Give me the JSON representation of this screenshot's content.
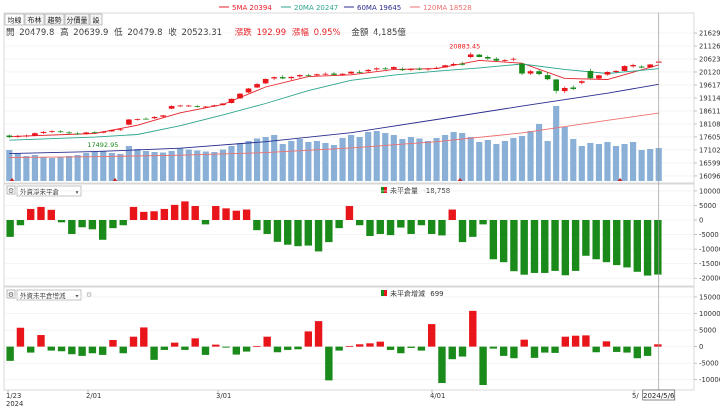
{
  "toolbar": {
    "tabs": [
      "均線",
      "布林",
      "趨勢",
      "分價量",
      "設"
    ],
    "active_tab": 0
  },
  "legend_ma": [
    {
      "label": "5MA 20394",
      "color": "#e8202a"
    },
    {
      "label": "20MA 20247",
      "color": "#2aa58c"
    },
    {
      "label": "60MA 19645",
      "color": "#2b2d8f"
    },
    {
      "label": "120MA 18528",
      "color": "#ee7070"
    }
  ],
  "info_line": {
    "open_label": "開",
    "open": "20479.8",
    "high_label": "高",
    "high": "20639.9",
    "low_label": "低",
    "low": "20479.8",
    "close_label": "收",
    "close": "20523.31",
    "change_label": "漲跌",
    "change": "192.99",
    "pct_label": "漲幅",
    "pct": "0.95%",
    "amount_label": "金額",
    "amount": "4,185億"
  },
  "panel2": {
    "select_label": "外資淨未平倉",
    "indicator_label": "未平倉量",
    "indicator_value": "-18,758"
  },
  "panel3": {
    "select_label": "外資未平倉增減",
    "indicator_label": "未平倉增減",
    "indicator_value": "699"
  },
  "colors": {
    "up": "#e8151b",
    "down": "#1a8a1a",
    "volume": "#8ab0d8",
    "text": "#333333"
  },
  "chart_data": [
    {
      "type": "candlestick",
      "x_ticks": [
        "1/23\n2024",
        "2/01",
        "3/01",
        "4/01",
        "5/"
      ],
      "cursor_date": "2024/5/6",
      "y_ticks": [
        16096,
        16599,
        17102,
        17605,
        18108,
        18611,
        19114,
        19617,
        20120,
        20623,
        21126,
        21629
      ],
      "ylim": [
        15900,
        21900
      ],
      "annotations": [
        {
          "text": "20883.45",
          "kind": "high"
        },
        {
          "text": "17492.95",
          "kind": "low"
        }
      ],
      "candles": [
        [
          17660,
          17700,
          17560,
          17600
        ],
        [
          17620,
          17680,
          17570,
          17640
        ],
        [
          17650,
          17700,
          17590,
          17660
        ],
        [
          17660,
          17780,
          17630,
          17750
        ],
        [
          17760,
          17830,
          17720,
          17800
        ],
        [
          17800,
          17860,
          17760,
          17830
        ],
        [
          17820,
          17870,
          17770,
          17790
        ],
        [
          17780,
          17830,
          17700,
          17750
        ],
        [
          17740,
          17790,
          17690,
          17720
        ],
        [
          17730,
          17800,
          17690,
          17780
        ],
        [
          17790,
          17820,
          17740,
          17760
        ],
        [
          17770,
          17830,
          17750,
          17810
        ],
        [
          17820,
          17890,
          17800,
          17870
        ],
        [
          17880,
          17930,
          17840,
          17900
        ],
        [
          18080,
          18300,
          18060,
          18280
        ],
        [
          18290,
          18320,
          18240,
          18300
        ],
        [
          18310,
          18360,
          18280,
          18300
        ],
        [
          18330,
          18400,
          18300,
          18380
        ],
        [
          18390,
          18460,
          18360,
          18440
        ],
        [
          18700,
          18830,
          18680,
          18800
        ],
        [
          18810,
          18850,
          18770,
          18820
        ],
        [
          18800,
          18850,
          18770,
          18820
        ],
        [
          18800,
          18830,
          18740,
          18770
        ],
        [
          18760,
          18800,
          18720,
          18780
        ],
        [
          18790,
          18850,
          18770,
          18830
        ],
        [
          18840,
          18920,
          18820,
          18900
        ],
        [
          18920,
          19100,
          18900,
          19080
        ],
        [
          19100,
          19300,
          19080,
          19280
        ],
        [
          19330,
          19500,
          19300,
          19480
        ],
        [
          19520,
          19700,
          19500,
          19650
        ],
        [
          19680,
          19870,
          19650,
          19850
        ],
        [
          19870,
          19950,
          19800,
          19920
        ],
        [
          19920,
          20000,
          19840,
          19870
        ],
        [
          19880,
          19950,
          19800,
          19930
        ],
        [
          19950,
          20030,
          19900,
          20000
        ],
        [
          19990,
          20050,
          19940,
          19980
        ],
        [
          19990,
          20060,
          19940,
          20030
        ],
        [
          20040,
          20100,
          20000,
          20050
        ],
        [
          20060,
          20120,
          20000,
          20010
        ],
        [
          20010,
          20070,
          19970,
          20050
        ],
        [
          20060,
          20150,
          20040,
          20130
        ],
        [
          20120,
          20190,
          20070,
          20100
        ],
        [
          20150,
          20240,
          20100,
          20200
        ],
        [
          20220,
          20300,
          20170,
          20260
        ],
        [
          20260,
          20310,
          20200,
          20230
        ],
        [
          20240,
          20340,
          20210,
          20310
        ],
        [
          20230,
          20300,
          20160,
          20190
        ],
        [
          20200,
          20260,
          20150,
          20240
        ],
        [
          20250,
          20300,
          20180,
          20210
        ],
        [
          20220,
          20280,
          20170,
          20250
        ],
        [
          20260,
          20330,
          20230,
          20280
        ],
        [
          20300,
          20400,
          20280,
          20380
        ],
        [
          20390,
          20480,
          20340,
          20430
        ],
        [
          20440,
          20520,
          20360,
          20400
        ],
        [
          20700,
          20880,
          20650,
          20800
        ],
        [
          20790,
          20820,
          20690,
          20700
        ],
        [
          20700,
          20760,
          20590,
          20640
        ],
        [
          20630,
          20690,
          20520,
          20560
        ],
        [
          20550,
          20620,
          20490,
          20580
        ],
        [
          20600,
          20680,
          20540,
          20630
        ],
        [
          20440,
          20470,
          20000,
          20060
        ],
        [
          20060,
          20200,
          20010,
          20150
        ],
        [
          20150,
          20210,
          19990,
          20040
        ],
        [
          20000,
          20110,
          19800,
          19840
        ],
        [
          19830,
          19850,
          19290,
          19390
        ],
        [
          19380,
          19560,
          19300,
          19500
        ],
        [
          19520,
          19600,
          19420,
          19460
        ],
        [
          19700,
          19800,
          19640,
          19760
        ],
        [
          20160,
          20250,
          19840,
          19880
        ],
        [
          19870,
          20010,
          19810,
          19990
        ],
        [
          20020,
          20150,
          19980,
          20120
        ],
        [
          20120,
          20190,
          20070,
          20160
        ],
        [
          20160,
          20380,
          20150,
          20350
        ],
        [
          20340,
          20440,
          20290,
          20390
        ],
        [
          20330,
          20380,
          20260,
          20290
        ],
        [
          20300,
          20430,
          20280,
          20410
        ],
        [
          20480,
          20640,
          20480,
          20523
        ]
      ],
      "ma5": [
        [
          0,
          17620
        ],
        [
          10,
          17740
        ],
        [
          15,
          18060
        ],
        [
          20,
          18540
        ],
        [
          25,
          18860
        ],
        [
          30,
          19540
        ],
        [
          35,
          19940
        ],
        [
          40,
          20010
        ],
        [
          45,
          20220
        ],
        [
          50,
          20250
        ],
        [
          55,
          20570
        ],
        [
          60,
          20460
        ],
        [
          65,
          19870
        ],
        [
          70,
          19830
        ],
        [
          76,
          20394
        ]
      ],
      "ma20": [
        [
          0,
          17480
        ],
        [
          10,
          17600
        ],
        [
          15,
          17700
        ],
        [
          20,
          18040
        ],
        [
          25,
          18460
        ],
        [
          30,
          18900
        ],
        [
          35,
          19400
        ],
        [
          40,
          19800
        ],
        [
          45,
          20000
        ],
        [
          50,
          20150
        ],
        [
          55,
          20280
        ],
        [
          60,
          20430
        ],
        [
          65,
          20220
        ],
        [
          70,
          20060
        ],
        [
          76,
          20247
        ]
      ],
      "ma60": [
        [
          0,
          16960
        ],
        [
          10,
          17040
        ],
        [
          20,
          17170
        ],
        [
          30,
          17420
        ],
        [
          40,
          17770
        ],
        [
          50,
          18280
        ],
        [
          60,
          18800
        ],
        [
          70,
          19300
        ],
        [
          76,
          19645
        ]
      ],
      "ma120": [
        [
          0,
          16810
        ],
        [
          10,
          16840
        ],
        [
          20,
          16900
        ],
        [
          30,
          17000
        ],
        [
          40,
          17180
        ],
        [
          50,
          17420
        ],
        [
          60,
          17760
        ],
        [
          70,
          18250
        ],
        [
          76,
          18528
        ]
      ],
      "volume": [
        62,
        55,
        50,
        52,
        48,
        46,
        48,
        50,
        52,
        56,
        58,
        60,
        56,
        54,
        70,
        64,
        60,
        58,
        57,
        60,
        65,
        63,
        61,
        59,
        58,
        63,
        70,
        76,
        80,
        85,
        88,
        92,
        74,
        80,
        84,
        78,
        80,
        76,
        72,
        86,
        92,
        88,
        98,
        100,
        96,
        92,
        84,
        88,
        85,
        80,
        86,
        92,
        98,
        96,
        88,
        78,
        82,
        74,
        80,
        86,
        90,
        100,
        114,
        80,
        150,
        108,
        84,
        70,
        76,
        74,
        78,
        70,
        74,
        78,
        62,
        64,
        66
      ]
    },
    {
      "type": "bar",
      "name": "外資淨未平倉",
      "y_ticks": [
        10000,
        5000,
        0,
        -5000,
        -10000,
        -15000,
        -20000
      ],
      "ylim": [
        -22000,
        11000
      ],
      "values": [
        -5800,
        -1800,
        3800,
        4500,
        3500,
        -800,
        -4800,
        -2500,
        -3200,
        -6800,
        -2800,
        -1800,
        4500,
        2800,
        3000,
        3800,
        5200,
        6400,
        4800,
        -1500,
        4800,
        4000,
        3200,
        3600,
        -3500,
        -4800,
        -7500,
        -8500,
        -9000,
        -8800,
        -10800,
        -7600,
        -2800,
        4800,
        -1800,
        -5500,
        -4800,
        -5200,
        -2600,
        -4800,
        -1800,
        -4800,
        -5300,
        3600,
        -7600,
        -5800,
        -1500,
        -13500,
        -14500,
        -17600,
        -18800,
        -18200,
        -18200,
        -17500,
        -19000,
        -17500,
        -12300,
        -13500,
        -14500,
        -15500,
        -16300,
        -17800,
        -19100,
        -18758
      ]
    },
    {
      "type": "bar",
      "name": "外資未平倉增減",
      "y_ticks": [
        15000,
        10000,
        5000,
        0,
        -5000,
        -10000
      ],
      "ylim": [
        -12500,
        16500
      ],
      "values": [
        -4300,
        5700,
        -1800,
        3500,
        -1200,
        -1400,
        -2300,
        -2800,
        -2000,
        -2500,
        2000,
        -2000,
        3000,
        5800,
        -4000,
        -1000,
        1200,
        -1000,
        2500,
        -2500,
        600,
        -300,
        -2400,
        -1500,
        200,
        3000,
        -1700,
        -1000,
        -800,
        4600,
        7700,
        -10200,
        -1200,
        200,
        700,
        1000,
        1500,
        -1000,
        -2000,
        -400,
        -1200,
        6800,
        -11000,
        -3800,
        -3000,
        10800,
        -11600,
        -600,
        -2800,
        -3500,
        2100,
        -3400,
        -1800,
        -1900,
        3000,
        3300,
        3400,
        -1700,
        1600,
        -1600,
        -1800,
        -3500,
        -2800,
        699
      ]
    }
  ]
}
